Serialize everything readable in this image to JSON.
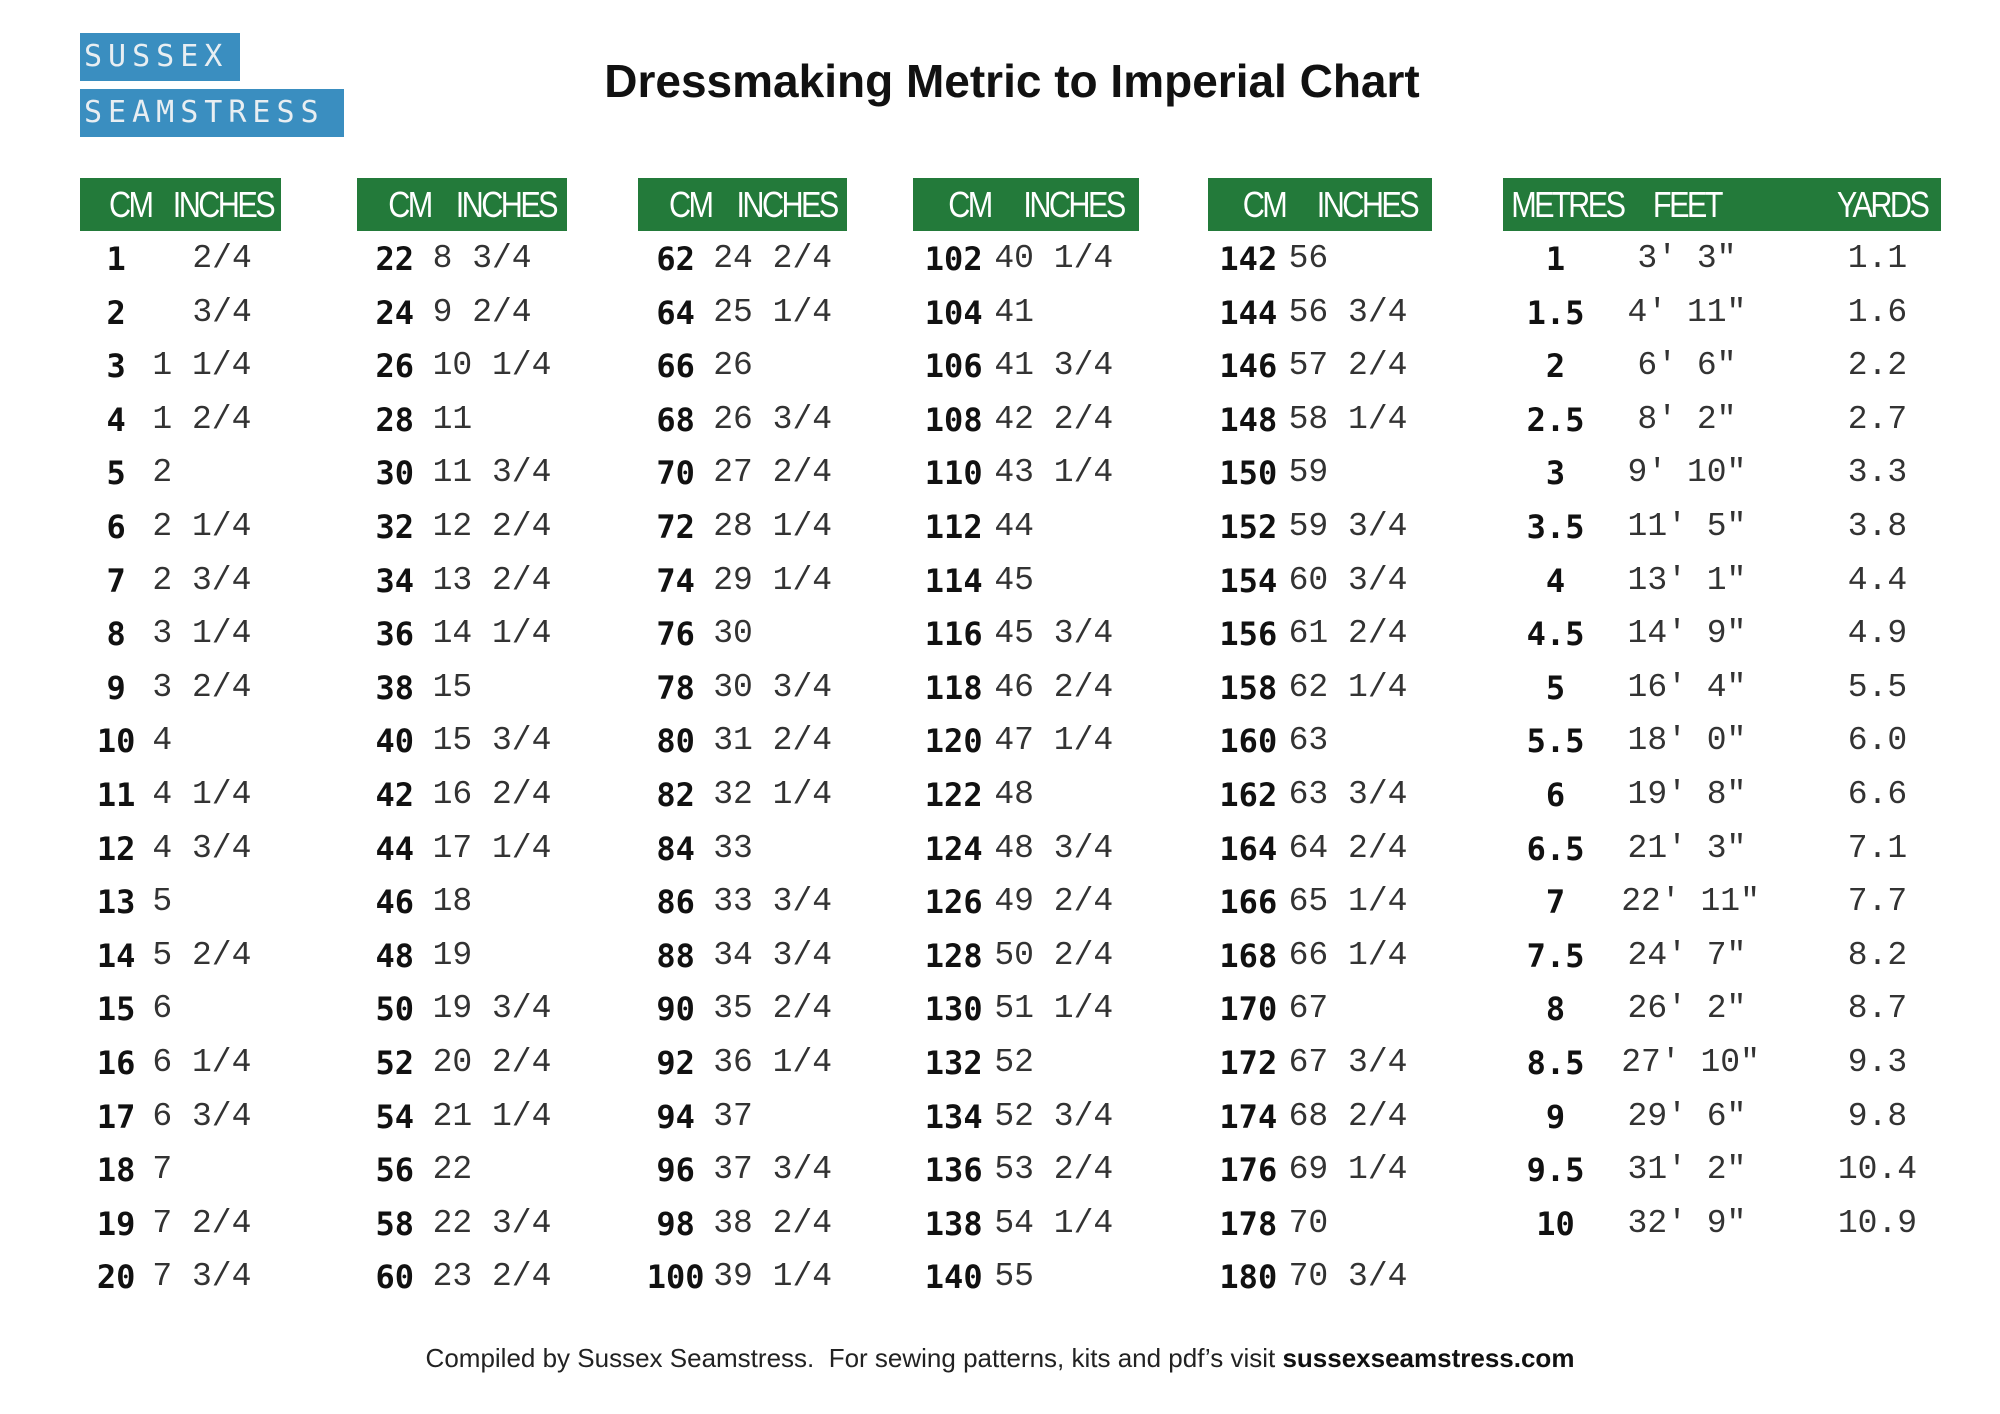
{
  "logo": [
    "SUSSEX",
    "SEAMSTRESS"
  ],
  "title": "Dressmaking Metric to Imperial Chart",
  "tables": [
    {
      "headers": [
        "CM",
        "INCHES"
      ],
      "rows": [
        [
          "1",
          "2/4"
        ],
        [
          "2",
          "3/4"
        ],
        [
          "3",
          "1 1/4"
        ],
        [
          "4",
          "1 2/4"
        ],
        [
          "5",
          "2"
        ],
        [
          "6",
          "2 1/4"
        ],
        [
          "7",
          "2 3/4"
        ],
        [
          "8",
          "3 1/4"
        ],
        [
          "9",
          "3 2/4"
        ],
        [
          "10",
          "4"
        ],
        [
          "11",
          "4 1/4"
        ],
        [
          "12",
          "4 3/4"
        ],
        [
          "13",
          "5"
        ],
        [
          "14",
          "5 2/4"
        ],
        [
          "15",
          "6"
        ],
        [
          "16",
          "6 1/4"
        ],
        [
          "17",
          "6 3/4"
        ],
        [
          "18",
          "7"
        ],
        [
          "19",
          "7 2/4"
        ],
        [
          "20",
          "7 3/4"
        ]
      ]
    },
    {
      "headers": [
        "CM",
        "INCHES"
      ],
      "rows": [
        [
          "22",
          "8 3/4"
        ],
        [
          "24",
          "9 2/4"
        ],
        [
          "26",
          "10 1/4"
        ],
        [
          "28",
          "11"
        ],
        [
          "30",
          "11 3/4"
        ],
        [
          "32",
          "12 2/4"
        ],
        [
          "34",
          "13 2/4"
        ],
        [
          "36",
          "14 1/4"
        ],
        [
          "38",
          "15"
        ],
        [
          "40",
          "15 3/4"
        ],
        [
          "42",
          "16 2/4"
        ],
        [
          "44",
          "17 1/4"
        ],
        [
          "46",
          "18"
        ],
        [
          "48",
          "19"
        ],
        [
          "50",
          "19 3/4"
        ],
        [
          "52",
          "20 2/4"
        ],
        [
          "54",
          "21 1/4"
        ],
        [
          "56",
          "22"
        ],
        [
          "58",
          "22 3/4"
        ],
        [
          "60",
          "23 2/4"
        ]
      ]
    },
    {
      "headers": [
        "CM",
        "INCHES"
      ],
      "rows": [
        [
          "62",
          "24 2/4"
        ],
        [
          "64",
          "25 1/4"
        ],
        [
          "66",
          "26"
        ],
        [
          "68",
          "26 3/4"
        ],
        [
          "70",
          "27 2/4"
        ],
        [
          "72",
          "28 1/4"
        ],
        [
          "74",
          "29 1/4"
        ],
        [
          "76",
          "30"
        ],
        [
          "78",
          "30 3/4"
        ],
        [
          "80",
          "31 2/4"
        ],
        [
          "82",
          "32 1/4"
        ],
        [
          "84",
          "33"
        ],
        [
          "86",
          "33 3/4"
        ],
        [
          "88",
          "34 3/4"
        ],
        [
          "90",
          "35 2/4"
        ],
        [
          "92",
          "36 1/4"
        ],
        [
          "94",
          "37"
        ],
        [
          "96",
          "37 3/4"
        ],
        [
          "98",
          "38 2/4"
        ],
        [
          "100",
          "39 1/4"
        ]
      ]
    },
    {
      "headers": [
        "CM",
        "INCHES"
      ],
      "rows": [
        [
          "102",
          "40 1/4"
        ],
        [
          "104",
          "41"
        ],
        [
          "106",
          "41 3/4"
        ],
        [
          "108",
          "42 2/4"
        ],
        [
          "110",
          "43 1/4"
        ],
        [
          "112",
          "44"
        ],
        [
          "114",
          "45"
        ],
        [
          "116",
          "45 3/4"
        ],
        [
          "118",
          "46 2/4"
        ],
        [
          "120",
          "47 1/4"
        ],
        [
          "122",
          "48"
        ],
        [
          "124",
          "48 3/4"
        ],
        [
          "126",
          "49 2/4"
        ],
        [
          "128",
          "50 2/4"
        ],
        [
          "130",
          "51 1/4"
        ],
        [
          "132",
          "52"
        ],
        [
          "134",
          "52 3/4"
        ],
        [
          "136",
          "53 2/4"
        ],
        [
          "138",
          "54 1/4"
        ],
        [
          "140",
          "55"
        ]
      ]
    },
    {
      "headers": [
        "CM",
        "INCHES"
      ],
      "rows": [
        [
          "142",
          "56"
        ],
        [
          "144",
          "56 3/4"
        ],
        [
          "146",
          "57 2/4"
        ],
        [
          "148",
          "58 1/4"
        ],
        [
          "150",
          "59"
        ],
        [
          "152",
          "59 3/4"
        ],
        [
          "154",
          "60 3/4"
        ],
        [
          "156",
          "61 2/4"
        ],
        [
          "158",
          "62 1/4"
        ],
        [
          "160",
          "63"
        ],
        [
          "162",
          "63 3/4"
        ],
        [
          "164",
          "64 2/4"
        ],
        [
          "166",
          "65 1/4"
        ],
        [
          "168",
          "66 1/4"
        ],
        [
          "170",
          "67"
        ],
        [
          "172",
          "67 3/4"
        ],
        [
          "174",
          "68 2/4"
        ],
        [
          "176",
          "69 1/4"
        ],
        [
          "178",
          "70"
        ],
        [
          "180",
          "70 3/4"
        ]
      ]
    },
    {
      "headers": [
        "METRES",
        "FEET",
        "YARDS"
      ],
      "rows": [
        [
          "1",
          "3' 3\"",
          "1.1"
        ],
        [
          "1.5",
          "4' 11\"",
          "1.6"
        ],
        [
          "2",
          "6' 6\"",
          "2.2"
        ],
        [
          "2.5",
          "8' 2\"",
          "2.7"
        ],
        [
          "3",
          "9' 10\"",
          "3.3"
        ],
        [
          "3.5",
          "11' 5\"",
          "3.8"
        ],
        [
          "4",
          "13' 1\"",
          "4.4"
        ],
        [
          "4.5",
          "14' 9\"",
          "4.9"
        ],
        [
          "5",
          "16' 4\"",
          "5.5"
        ],
        [
          "5.5",
          "18' 0\"",
          "6.0"
        ],
        [
          "6",
          "19' 8\"",
          "6.6"
        ],
        [
          "6.5",
          "21' 3\"",
          "7.1"
        ],
        [
          "7",
          "22' 11\"",
          "7.7"
        ],
        [
          "7.5",
          "24' 7\"",
          "8.2"
        ],
        [
          "8",
          "26' 2\"",
          "8.7"
        ],
        [
          "8.5",
          "27' 10\"",
          "9.3"
        ],
        [
          "9",
          "29' 6\"",
          "9.8"
        ],
        [
          "9.5",
          "31' 2\"",
          "10.4"
        ],
        [
          "10",
          "32' 9\"",
          "10.9"
        ]
      ]
    }
  ],
  "footer": {
    "text": "Compiled by Sussex Seamstress.  For sewing patterns, kits and pdf’s visit",
    "link": "sussexseamstress.com"
  }
}
